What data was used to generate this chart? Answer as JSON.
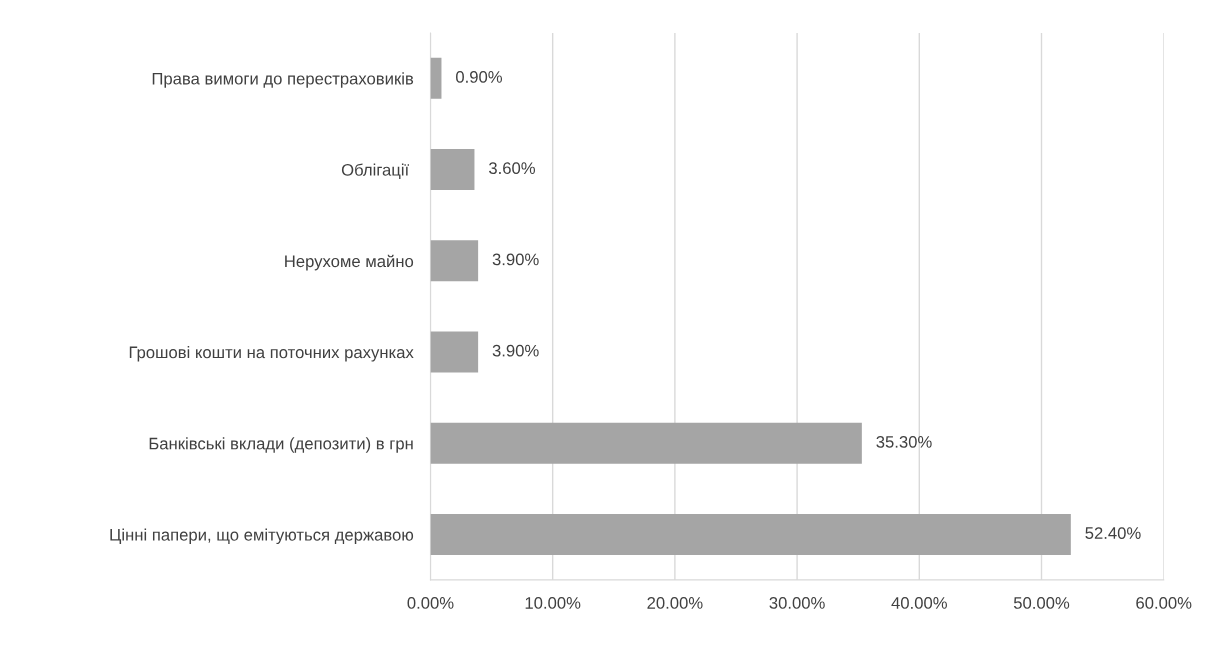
{
  "chart_data": {
    "type": "bar",
    "orientation": "horizontal",
    "categories": [
      "Права вимоги до перестраховиків",
      "Облігації ",
      "Нерухоме майно",
      "Грошові кошти на поточних рахунках",
      "Банківські вклади (депозити) в грн",
      "Цінні папери, що емітуються державою"
    ],
    "values": [
      0.9,
      3.6,
      3.9,
      3.9,
      35.3,
      52.4
    ],
    "value_labels": [
      "0.90%",
      "3.60%",
      "3.90%",
      "3.90%",
      "35.30%",
      "52.40%"
    ],
    "color": "#a5a5a5",
    "xlim": [
      0,
      60
    ],
    "xticks": [
      {
        "value": 0,
        "label": "0.00%"
      },
      {
        "value": 10,
        "label": "10.00%"
      },
      {
        "value": 20,
        "label": "20.00%"
      },
      {
        "value": 30,
        "label": "30.00%"
      },
      {
        "value": 40,
        "label": "40.00%"
      },
      {
        "value": 50,
        "label": "50.00%"
      },
      {
        "value": 60,
        "label": "60.00%"
      }
    ],
    "grid": "x"
  }
}
